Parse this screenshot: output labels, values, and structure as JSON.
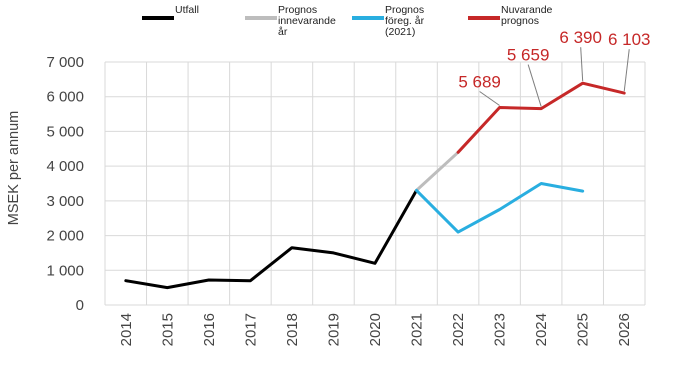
{
  "chart_data": {
    "type": "line",
    "title": "",
    "xlabel": "",
    "ylabel": "MSEK per annum",
    "x": [
      "2014",
      "2015",
      "2016",
      "2017",
      "2018",
      "2019",
      "2020",
      "2021",
      "2022",
      "2023",
      "2024",
      "2025",
      "2026"
    ],
    "ylim": [
      0,
      7000
    ],
    "yticks": [
      0,
      1000,
      2000,
      3000,
      4000,
      5000,
      6000,
      7000
    ],
    "ytick_labels": [
      "0",
      "1 000",
      "2 000",
      "3 000",
      "4 000",
      "5 000",
      "6 000",
      "7 000"
    ],
    "grid": true,
    "legend_position": "top",
    "series": [
      {
        "name": "Utfall",
        "color": "#000000",
        "points": [
          {
            "x": "2014",
            "y": 700
          },
          {
            "x": "2015",
            "y": 500
          },
          {
            "x": "2016",
            "y": 720
          },
          {
            "x": "2017",
            "y": 700
          },
          {
            "x": "2018",
            "y": 1650
          },
          {
            "x": "2019",
            "y": 1500
          },
          {
            "x": "2020",
            "y": 1200
          },
          {
            "x": "2021",
            "y": 3300
          }
        ]
      },
      {
        "name": "Prognos innevarande år",
        "color": "#bdbdbd",
        "points": [
          {
            "x": "2021",
            "y": 3300
          },
          {
            "x": "2022",
            "y": 4400
          }
        ]
      },
      {
        "name": "Prognos föreg. år (2021)",
        "color": "#29aee0",
        "points": [
          {
            "x": "2021",
            "y": 3300
          },
          {
            "x": "2022",
            "y": 2100
          },
          {
            "x": "2023",
            "y": 2750
          },
          {
            "x": "2024",
            "y": 3500
          },
          {
            "x": "2025",
            "y": 3280
          }
        ]
      },
      {
        "name": "Nuvarande prognos",
        "color": "#c62828",
        "points": [
          {
            "x": "2022",
            "y": 4400
          },
          {
            "x": "2023",
            "y": 5689
          },
          {
            "x": "2024",
            "y": 5659
          },
          {
            "x": "2025",
            "y": 6390
          },
          {
            "x": "2026",
            "y": 6103
          }
        ]
      }
    ],
    "legend": [
      {
        "label_lines": [
          "Utfall"
        ],
        "color": "#000000"
      },
      {
        "label_lines": [
          "Prognos",
          "innevarande",
          "år"
        ],
        "color": "#bdbdbd"
      },
      {
        "label_lines": [
          "Prognos",
          "föreg. år",
          "(2021)"
        ],
        "color": "#29aee0"
      },
      {
        "label_lines": [
          "Nuvarande",
          "prognos"
        ],
        "color": "#c62828"
      }
    ],
    "annotations": [
      {
        "text": "5 689",
        "x": "2023",
        "y": 5689,
        "color": "#c62828"
      },
      {
        "text": "5 659",
        "x": "2024",
        "y": 5659,
        "color": "#c62828"
      },
      {
        "text": "6 390",
        "x": "2025",
        "y": 6390,
        "color": "#c62828"
      },
      {
        "text": "6 103",
        "x": "2026",
        "y": 6103,
        "color": "#c62828"
      }
    ]
  }
}
